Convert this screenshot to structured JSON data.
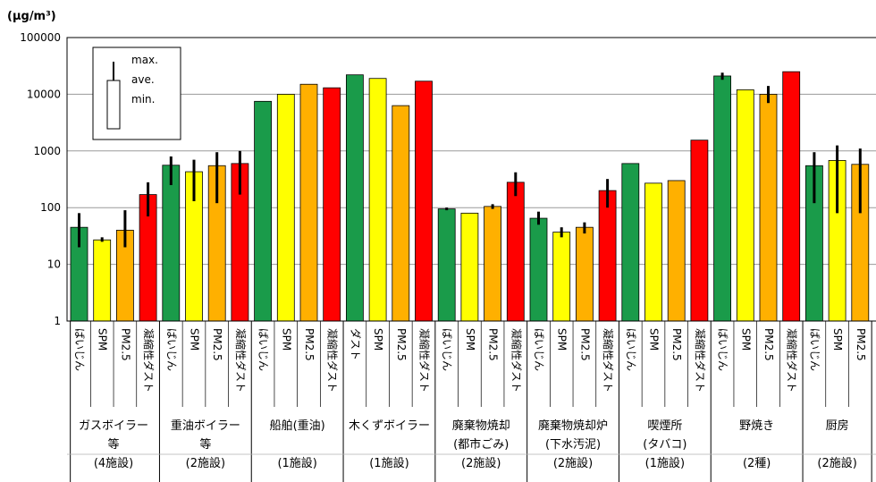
{
  "chart_data": {
    "type": "bar",
    "ylabel": "(μg/m³)",
    "yscale": "log",
    "ylim": [
      1,
      100000
    ],
    "yticks": [
      "1",
      "10",
      "100",
      "1000",
      "10000",
      "100000"
    ],
    "grid": true,
    "colors": {
      "ばいじん": "#1a9b4a",
      "SPM": "#ffff00",
      "PM2.5": "#ffb000",
      "凝縮性ダスト": "#ff0000",
      "ダスト": "#1a9b4a"
    },
    "legend": {
      "position": "top-left",
      "labels": [
        "max.",
        "ave.",
        "min."
      ]
    },
    "groups": [
      {
        "label_lines": [
          "ガスボイラー",
          "等",
          "(4施設)"
        ],
        "bars": [
          {
            "category": "ばいじん",
            "value": 45,
            "min": 20,
            "max": 80
          },
          {
            "category": "SPM",
            "value": 27,
            "min": 25,
            "max": 30
          },
          {
            "category": "PM2.5",
            "value": 40,
            "min": 20,
            "max": 90
          },
          {
            "category": "凝縮性ダスト",
            "value": 170,
            "min": 70,
            "max": 280
          }
        ]
      },
      {
        "label_lines": [
          "重油ボイラー",
          "等",
          "(2施設)"
        ],
        "bars": [
          {
            "category": "ばいじん",
            "value": 560,
            "min": 250,
            "max": 800
          },
          {
            "category": "SPM",
            "value": 430,
            "min": 130,
            "max": 700
          },
          {
            "category": "PM2.5",
            "value": 550,
            "min": 120,
            "max": 950
          },
          {
            "category": "凝縮性ダスト",
            "value": 600,
            "min": 170,
            "max": 1000
          }
        ]
      },
      {
        "label_lines": [
          "船舶(重油)",
          "(1施設)"
        ],
        "bars": [
          {
            "category": "ばいじん",
            "value": 7500
          },
          {
            "category": "SPM",
            "value": 10000
          },
          {
            "category": "PM2.5",
            "value": 15000
          },
          {
            "category": "凝縮性ダスト",
            "value": 13000
          }
        ]
      },
      {
        "label_lines": [
          "木くずボイラー",
          "(1施設)"
        ],
        "bars": [
          {
            "category": "ダスト",
            "value": 22000
          },
          {
            "category": "SPM",
            "value": 19000
          },
          {
            "category": "PM2.5",
            "value": 6300
          },
          {
            "category": "凝縮性ダスト",
            "value": 17000
          }
        ]
      },
      {
        "label_lines": [
          "廃棄物焼却",
          "(都市ごみ)",
          "(2施設)"
        ],
        "bars": [
          {
            "category": "ばいじん",
            "value": 95,
            "min": 90,
            "max": 100
          },
          {
            "category": "SPM",
            "value": 80
          },
          {
            "category": "PM2.5",
            "value": 105,
            "min": 95,
            "max": 115
          },
          {
            "category": "凝縮性ダスト",
            "value": 280,
            "min": 160,
            "max": 420
          }
        ]
      },
      {
        "label_lines": [
          "廃棄物焼却炉",
          "(下水汚泥)",
          "(2施設)"
        ],
        "bars": [
          {
            "category": "ばいじん",
            "value": 65,
            "min": 50,
            "max": 85
          },
          {
            "category": "SPM",
            "value": 37,
            "min": 30,
            "max": 45
          },
          {
            "category": "PM2.5",
            "value": 45,
            "min": 35,
            "max": 55
          },
          {
            "category": "凝縮性ダスト",
            "value": 200,
            "min": 100,
            "max": 320
          }
        ]
      },
      {
        "label_lines": [
          "喫煙所",
          "(タバコ)",
          "(1施設)"
        ],
        "bars": [
          {
            "category": "ばいじん",
            "value": 600
          },
          {
            "category": "SPM",
            "value": 270
          },
          {
            "category": "PM2.5",
            "value": 300
          },
          {
            "category": "凝縮性ダスト",
            "value": 1550
          }
        ]
      },
      {
        "label_lines": [
          "野焼き",
          "(2種)"
        ],
        "bars": [
          {
            "category": "ばいじん",
            "value": 21000,
            "min": 18000,
            "max": 24000
          },
          {
            "category": "SPM",
            "value": 12000
          },
          {
            "category": "PM2.5",
            "value": 10000,
            "min": 7000,
            "max": 14000
          },
          {
            "category": "凝縮性ダスト",
            "value": 25000
          }
        ]
      },
      {
        "label_lines": [
          "厨房",
          "(2施設)"
        ],
        "bars": [
          {
            "category": "ばいじん",
            "value": 550,
            "min": 120,
            "max": 950
          },
          {
            "category": "SPM",
            "value": 680,
            "min": 80,
            "max": 1250
          },
          {
            "category": "PM2.5",
            "value": 580,
            "min": 80,
            "max": 1100
          }
        ]
      }
    ]
  }
}
